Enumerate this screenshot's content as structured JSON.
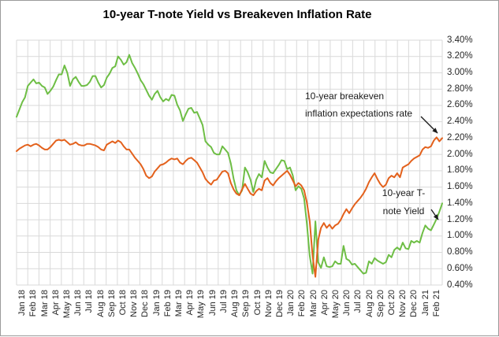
{
  "title": "10-year T-note Yield vs Breakeven Inflation Rate",
  "annotations": {
    "breakeven": {
      "line1": "10-year breakeven",
      "line2": "inflation expectations rate"
    },
    "tnote": {
      "line1": "10-year T-",
      "line2": "note Yield"
    }
  },
  "colors": {
    "tnote_green": "#6EBE45",
    "breakeven_orange": "#E3611C",
    "gridline": "#D9D9D9",
    "axis_text": "#262626",
    "annotation_text": "#1A1A1A",
    "chart_border": "#9B9B9B",
    "background": "#FFFFFF"
  },
  "chart_data": {
    "type": "line",
    "title": "10-year T-note Yield vs Breakeven Inflation Rate",
    "x_frequency": "4 points per month (approx. weekly), Jan 2018 - Feb 2021",
    "categories": [
      "Jan 18",
      "Feb 18",
      "Mar 18",
      "Apr 18",
      "May 18",
      "Jun 18",
      "Jul 18",
      "Aug 18",
      "Sep 18",
      "Oct 18",
      "Nov 18",
      "Dec 18",
      "Jan 19",
      "Feb 19",
      "Mar 19",
      "Apr 19",
      "May 19",
      "Jun 19",
      "Jul 19",
      "Aug 19",
      "Sep 19",
      "Oct 19",
      "Nov 19",
      "Dec 19",
      "Jan 20",
      "Feb 20",
      "Mar 20",
      "Apr 20",
      "May 20",
      "Jun 20",
      "Jul 20",
      "Aug 20",
      "Sep 20",
      "Oct 20",
      "Nov 20",
      "Dec 20",
      "Jan 21",
      "Feb 21"
    ],
    "y_tick_labels": [
      "3.40%",
      "3.20%",
      "3.00%",
      "2.80%",
      "2.60%",
      "2.40%",
      "2.20%",
      "2.00%",
      "1.80%",
      "1.60%",
      "1.40%",
      "1.20%",
      "1.00%",
      "0.80%",
      "0.60%",
      "0.40%"
    ],
    "ylim": [
      0.4,
      3.4
    ],
    "y_tick_step": 0.2,
    "grid": true,
    "legend_position": "none (series labeled by in-chart annotations with arrows)",
    "series": [
      {
        "id": "tnote",
        "name": "10-year T-note Yield",
        "color": "#6EBE45",
        "values": [
          2.46,
          2.55,
          2.64,
          2.7,
          2.84,
          2.88,
          2.92,
          2.87,
          2.88,
          2.84,
          2.82,
          2.74,
          2.78,
          2.83,
          2.91,
          2.98,
          2.98,
          3.09,
          3.0,
          2.84,
          2.92,
          2.95,
          2.89,
          2.84,
          2.84,
          2.85,
          2.89,
          2.96,
          2.96,
          2.88,
          2.82,
          2.85,
          2.94,
          2.99,
          3.06,
          3.08,
          3.2,
          3.16,
          3.1,
          3.13,
          3.22,
          3.12,
          3.06,
          2.99,
          2.91,
          2.86,
          2.79,
          2.72,
          2.67,
          2.74,
          2.78,
          2.7,
          2.65,
          2.68,
          2.66,
          2.73,
          2.72,
          2.61,
          2.54,
          2.41,
          2.49,
          2.56,
          2.57,
          2.51,
          2.52,
          2.44,
          2.36,
          2.16,
          2.12,
          2.09,
          2.02,
          2.0,
          2.0,
          2.1,
          2.06,
          2.02,
          1.89,
          1.7,
          1.56,
          1.5,
          1.56,
          1.84,
          1.78,
          1.69,
          1.54,
          1.69,
          1.76,
          1.72,
          1.92,
          1.84,
          1.78,
          1.77,
          1.82,
          1.87,
          1.93,
          1.92,
          1.82,
          1.84,
          1.74,
          1.56,
          1.61,
          1.58,
          1.46,
          1.15,
          0.76,
          0.54,
          1.18,
          0.68,
          0.61,
          0.74,
          0.63,
          0.62,
          0.63,
          0.69,
          0.66,
          0.66,
          0.88,
          0.72,
          0.7,
          0.65,
          0.66,
          0.62,
          0.58,
          0.54,
          0.55,
          0.69,
          0.66,
          0.73,
          0.7,
          0.68,
          0.66,
          0.68,
          0.77,
          0.74,
          0.83,
          0.86,
          0.83,
          0.92,
          0.85,
          0.84,
          0.94,
          0.92,
          0.94,
          0.92,
          1.04,
          1.13,
          1.09,
          1.07,
          1.14,
          1.21,
          1.3,
          1.4
        ]
      },
      {
        "id": "breakeven",
        "name": "10-year breakeven inflation expectations rate",
        "color": "#E3611C",
        "values": [
          2.04,
          2.07,
          2.09,
          2.11,
          2.12,
          2.1,
          2.12,
          2.13,
          2.11,
          2.08,
          2.06,
          2.06,
          2.09,
          2.13,
          2.17,
          2.18,
          2.17,
          2.18,
          2.15,
          2.12,
          2.13,
          2.15,
          2.12,
          2.11,
          2.11,
          2.13,
          2.13,
          2.12,
          2.11,
          2.09,
          2.06,
          2.05,
          2.12,
          2.14,
          2.16,
          2.14,
          2.17,
          2.15,
          2.1,
          2.06,
          2.06,
          2.01,
          1.96,
          1.92,
          1.88,
          1.82,
          1.74,
          1.71,
          1.73,
          1.79,
          1.83,
          1.87,
          1.88,
          1.9,
          1.93,
          1.95,
          1.94,
          1.95,
          1.9,
          1.88,
          1.92,
          1.95,
          1.96,
          1.93,
          1.9,
          1.84,
          1.78,
          1.7,
          1.66,
          1.63,
          1.68,
          1.69,
          1.74,
          1.79,
          1.8,
          1.77,
          1.65,
          1.57,
          1.52,
          1.5,
          1.57,
          1.64,
          1.58,
          1.52,
          1.5,
          1.55,
          1.58,
          1.56,
          1.68,
          1.71,
          1.65,
          1.62,
          1.67,
          1.71,
          1.74,
          1.77,
          1.8,
          1.75,
          1.68,
          1.61,
          1.65,
          1.62,
          1.56,
          1.41,
          1.18,
          0.76,
          0.5,
          0.95,
          1.1,
          1.16,
          1.1,
          1.14,
          1.09,
          1.13,
          1.15,
          1.2,
          1.27,
          1.33,
          1.28,
          1.34,
          1.39,
          1.43,
          1.47,
          1.52,
          1.58,
          1.66,
          1.72,
          1.77,
          1.7,
          1.64,
          1.6,
          1.63,
          1.71,
          1.74,
          1.72,
          1.77,
          1.72,
          1.84,
          1.86,
          1.88,
          1.92,
          1.95,
          1.97,
          1.99,
          2.06,
          2.09,
          2.08,
          2.1,
          2.17,
          2.21,
          2.16,
          2.2
        ]
      }
    ]
  }
}
